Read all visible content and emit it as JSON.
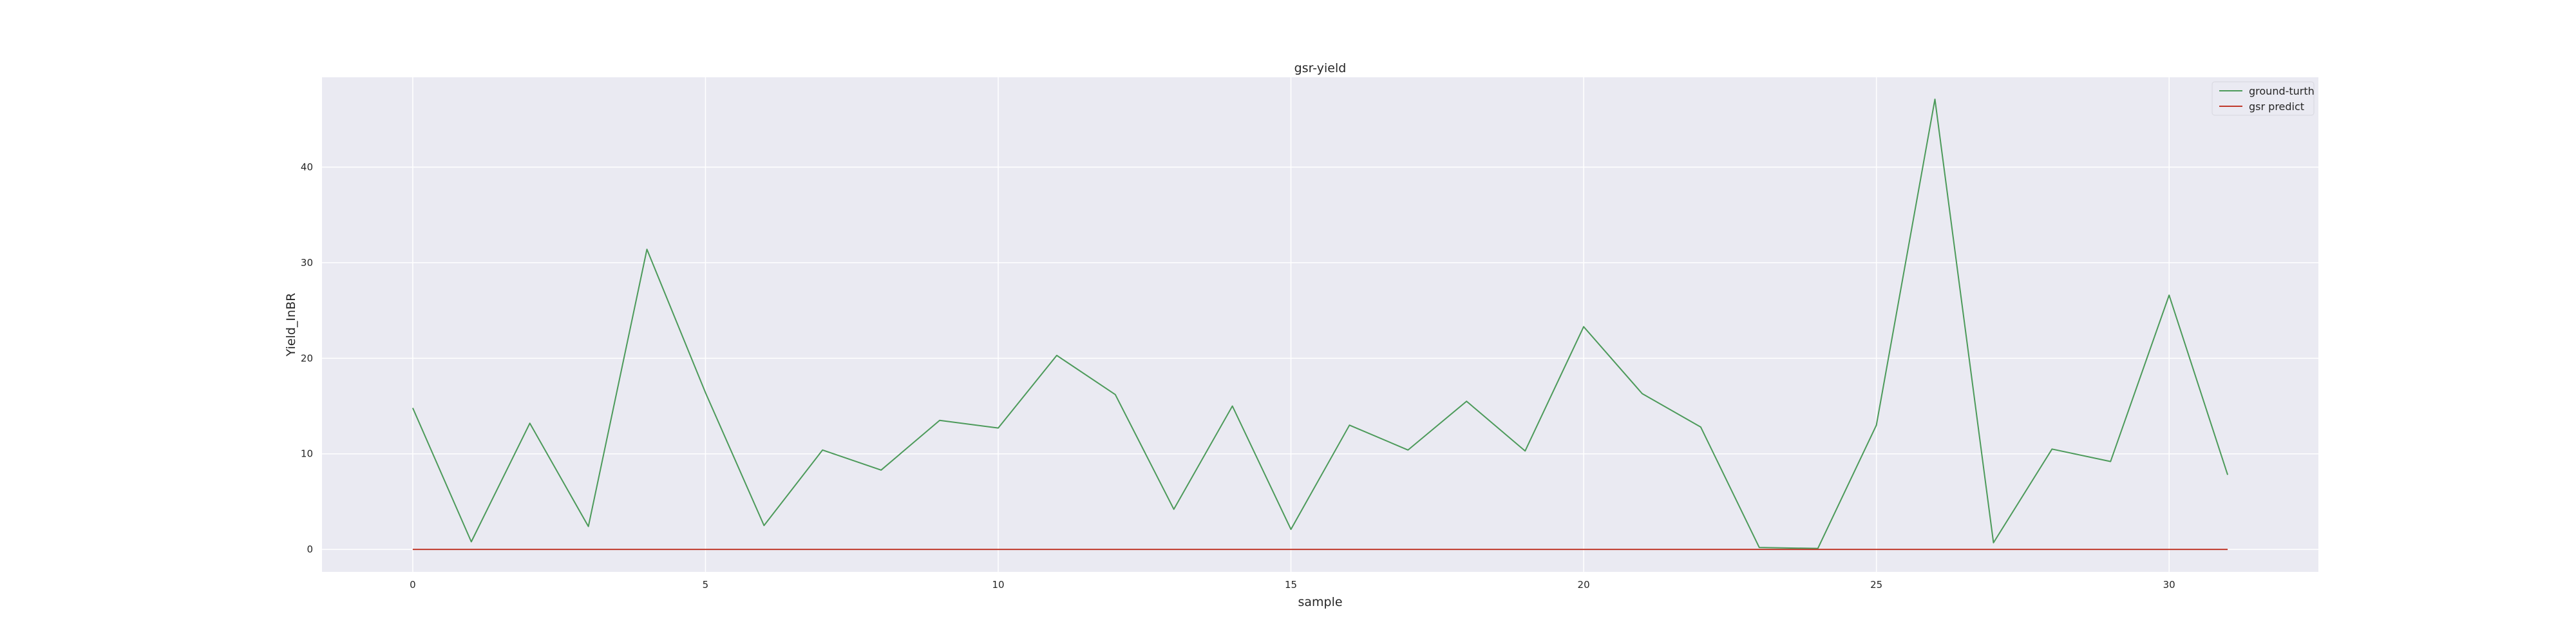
{
  "chart_data": {
    "type": "line",
    "title": "gsr-yield",
    "xlabel": "sample",
    "ylabel": "Yield_InBR",
    "xlim": [
      -1.55,
      32.55
    ],
    "ylim": [
      -2.35,
      49.4
    ],
    "xticks": [
      0,
      5,
      10,
      15,
      20,
      25,
      30
    ],
    "yticks": [
      0,
      10,
      20,
      30,
      40
    ],
    "grid": true,
    "legend_position": "top-right",
    "x": [
      0,
      1,
      2,
      3,
      4,
      5,
      6,
      7,
      8,
      9,
      10,
      11,
      12,
      13,
      14,
      15,
      16,
      17,
      18,
      19,
      20,
      21,
      22,
      23,
      24,
      25,
      26,
      27,
      28,
      29,
      30,
      31
    ],
    "series": [
      {
        "name": "ground-turth",
        "color": "#4c9a5a",
        "values": [
          14.8,
          0.8,
          13.2,
          2.4,
          31.4,
          16.4,
          2.5,
          10.4,
          8.3,
          13.5,
          12.7,
          20.3,
          16.2,
          4.2,
          15.0,
          2.1,
          13.0,
          10.4,
          15.5,
          10.3,
          23.3,
          16.3,
          12.8,
          0.2,
          0.1,
          13.0,
          47.1,
          0.7,
          10.5,
          9.2,
          26.6,
          7.8
        ]
      },
      {
        "name": "gsr predict",
        "color": "#c0392b",
        "values": [
          0,
          0,
          0,
          0,
          0,
          0,
          0,
          0,
          0,
          0,
          0,
          0,
          0,
          0,
          0,
          0,
          0,
          0,
          0,
          0,
          0,
          0,
          0,
          0,
          0,
          0,
          0,
          0,
          0,
          0,
          0,
          0
        ]
      }
    ]
  }
}
